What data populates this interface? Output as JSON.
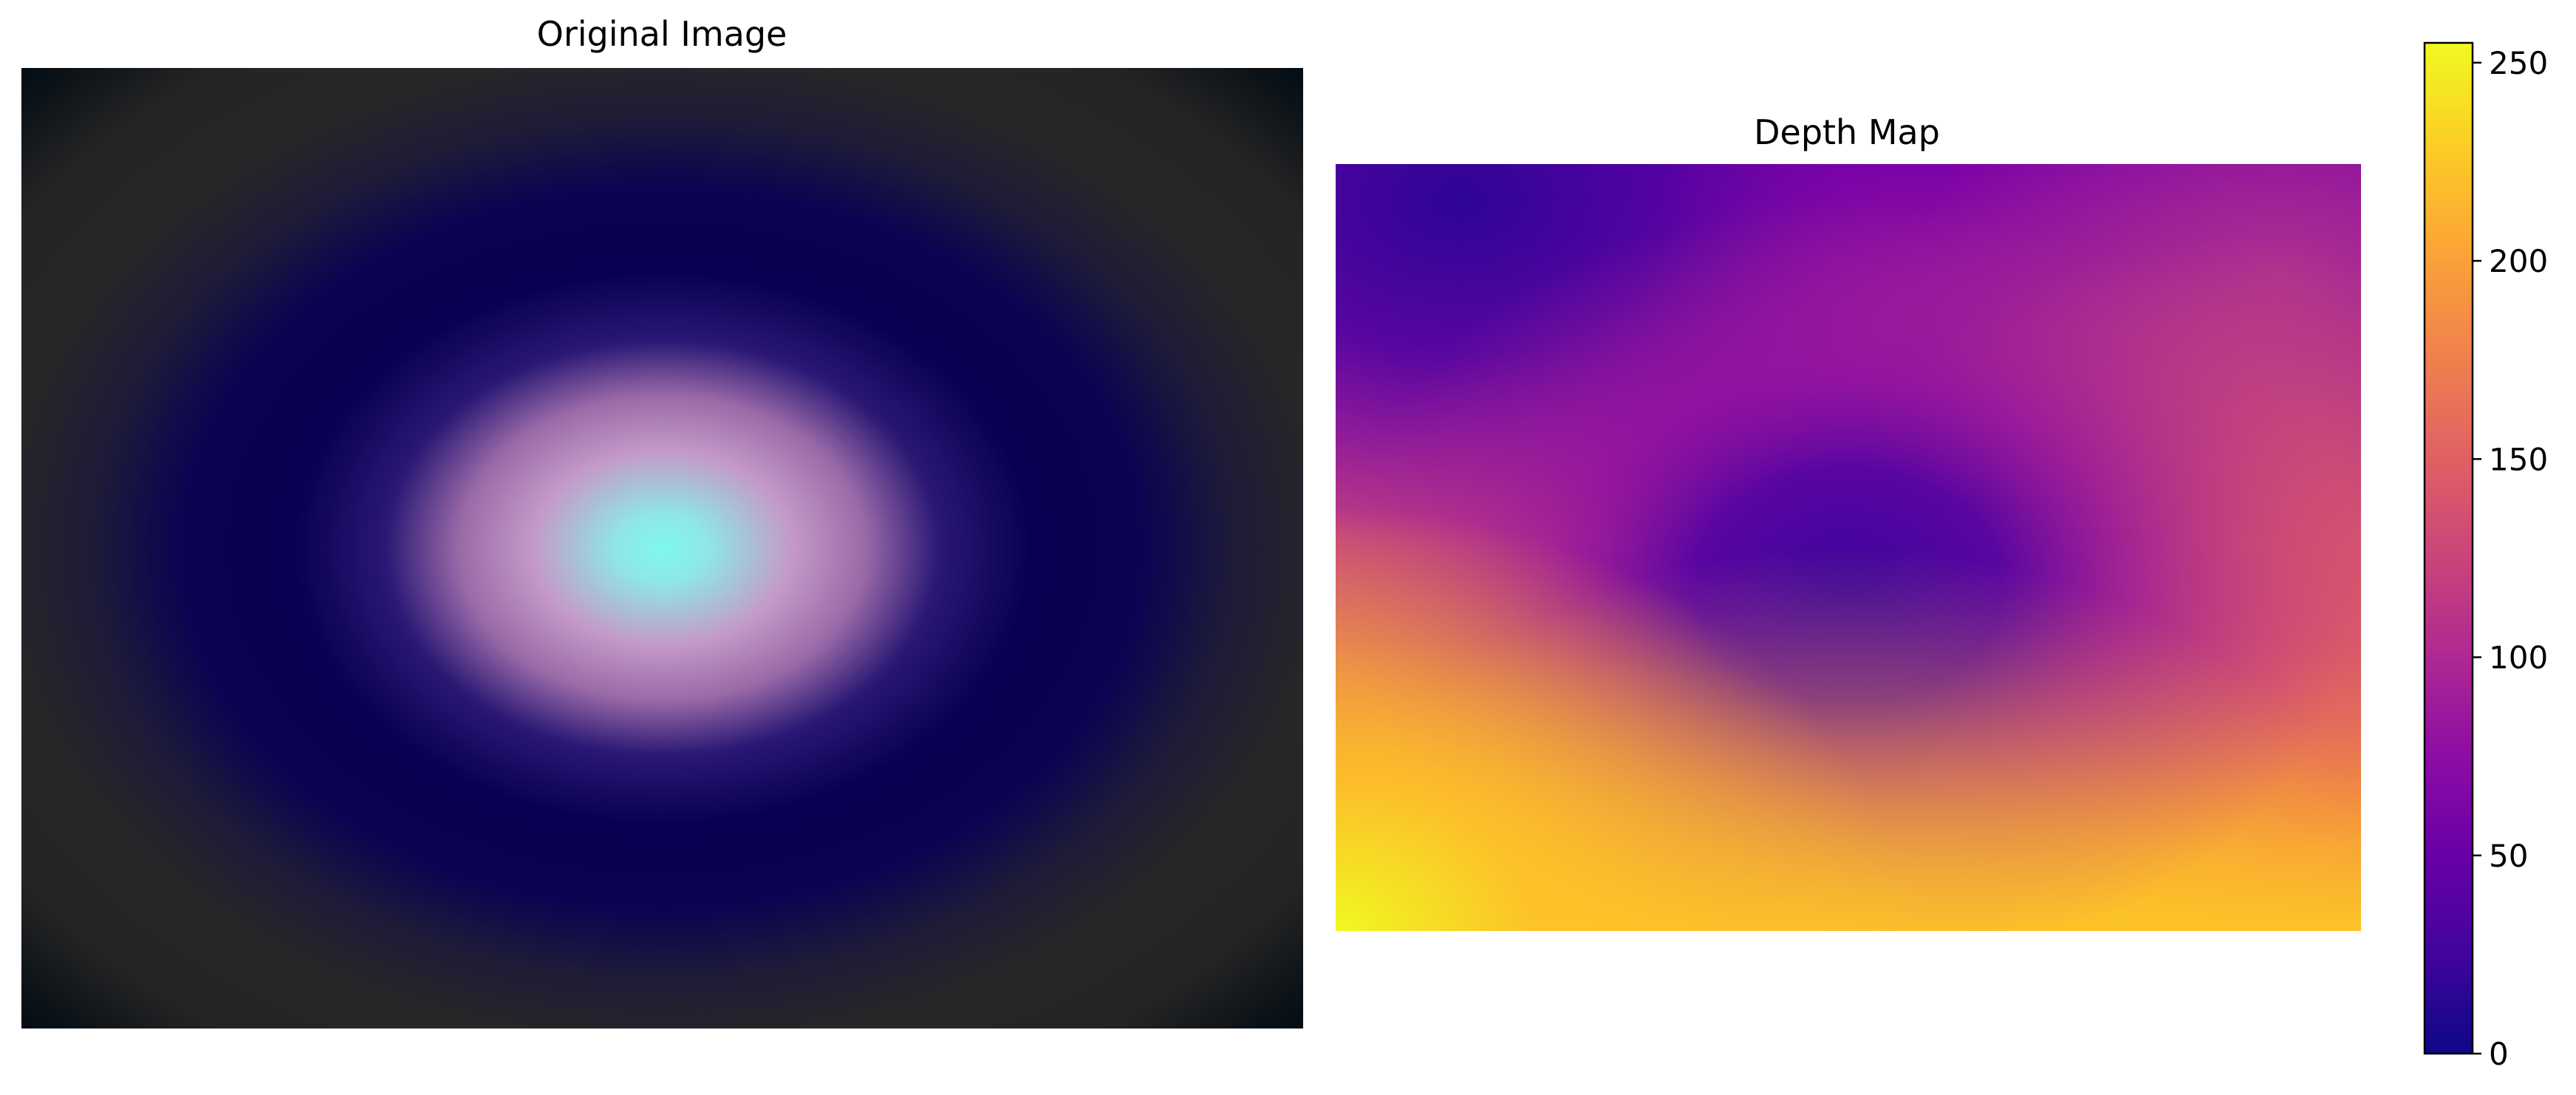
{
  "chart_data": [
    {
      "type": "heatmap",
      "title": "Original Image",
      "axes_visible": false,
      "colorbar": false,
      "content": "RGB image: concentric elliptical rings centred in the frame, cyan core fading through pink to deep navy, then dark grey, with near-black corners",
      "colors": {
        "center": "#7ff8ee",
        "inner": "#c49ac8",
        "mid": "#080052",
        "outer": "#282626",
        "corners": "#000a14"
      }
    },
    {
      "type": "heatmap",
      "title": "Depth Map",
      "axes_visible": false,
      "colormap": "plasma",
      "colorbar": {
        "vmin": 0,
        "vmax": 255,
        "ticks": [
          "0",
          "50",
          "100",
          "150",
          "200",
          "250"
        ],
        "tick_values": [
          0,
          50,
          100,
          150,
          200,
          250
        ]
      },
      "approximate_values": {
        "top_left_corner": 20,
        "top_center": 60,
        "top_right_corner": 110,
        "center_minimum": 35,
        "right_middle": 155,
        "bottom_left_corner": 255,
        "bottom_center": 225,
        "bottom_right_corner": 215
      }
    }
  ]
}
